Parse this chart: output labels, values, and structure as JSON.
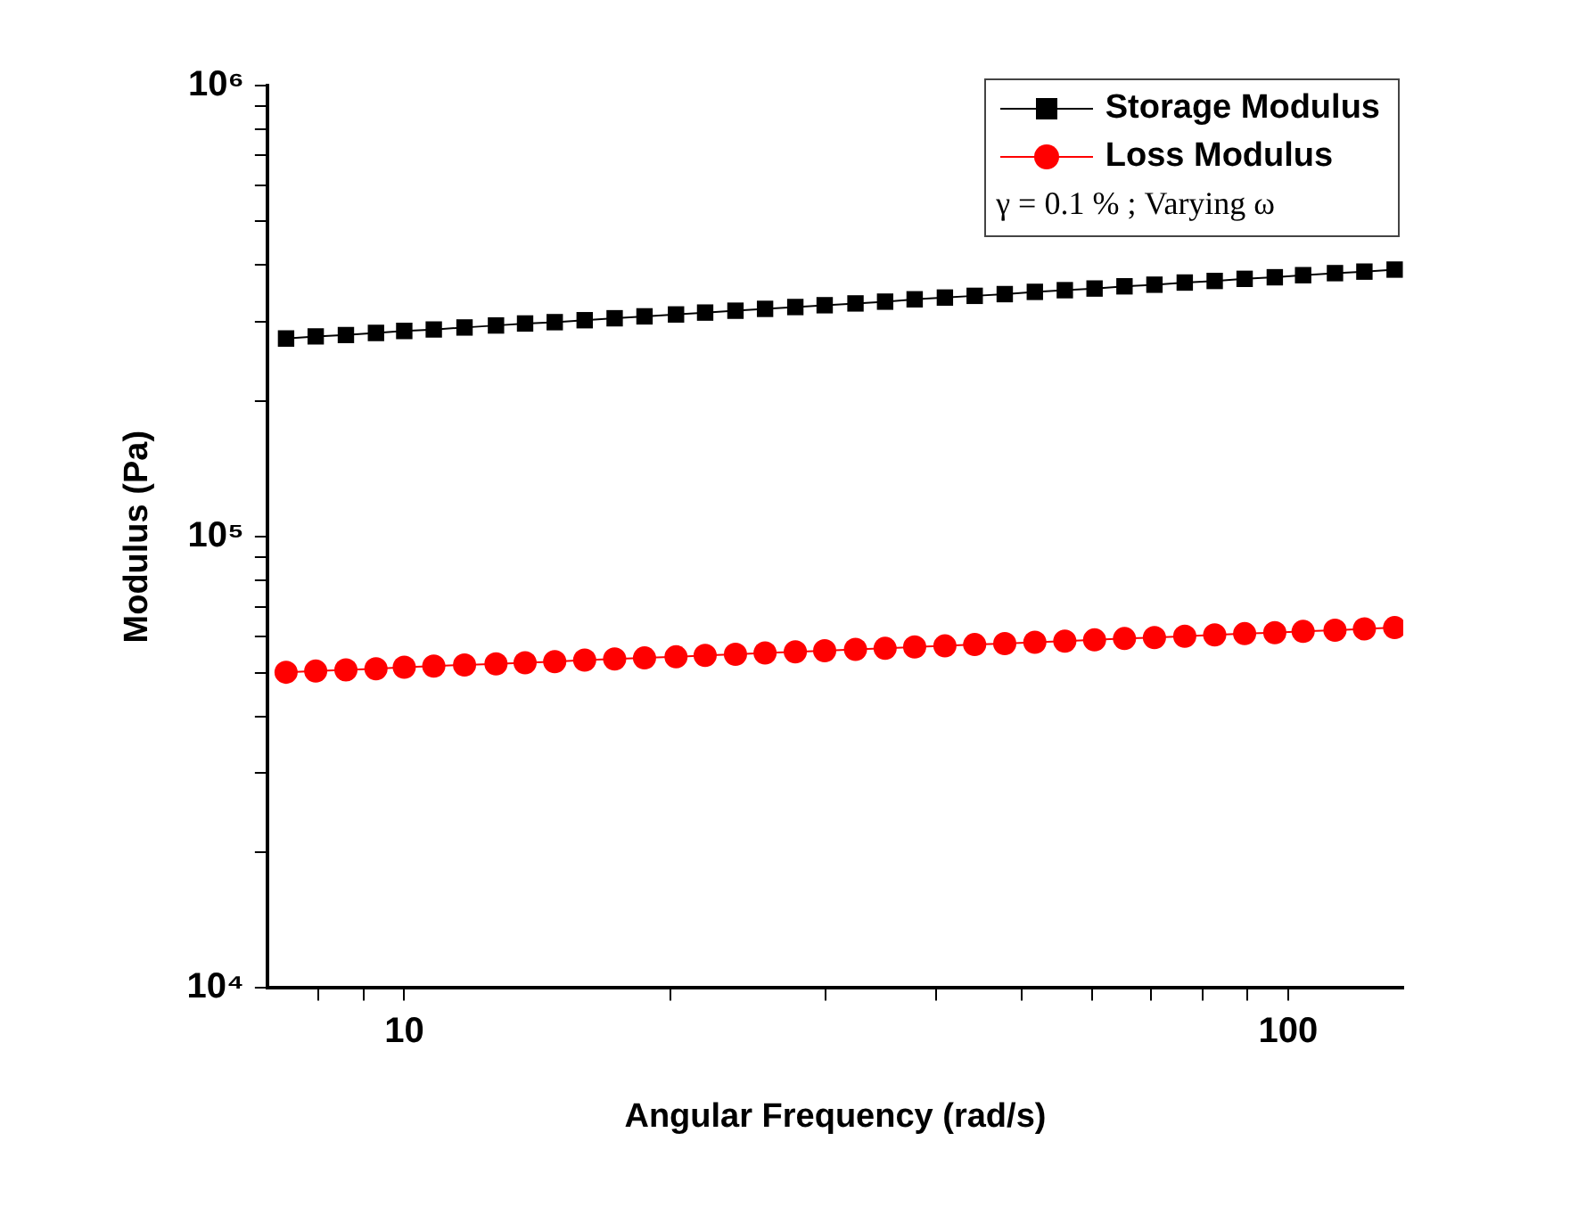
{
  "chart_data": {
    "type": "line",
    "xlabel": "Angular Frequency (rad/s)",
    "ylabel": "Modulus (Pa)",
    "log": "xy",
    "grid": false,
    "legend": "top right",
    "line_style": "solid",
    "annotations": [
      "γ = 0.1 % ; Varying ω"
    ],
    "xlim": [
      7,
      135
    ],
    "xticks": [
      {
        "value": 8,
        "label": null
      },
      {
        "value": 9,
        "label": null
      },
      10,
      {
        "value": 20,
        "label": null
      },
      {
        "value": 30,
        "label": null
      },
      {
        "value": 40,
        "label": null
      },
      {
        "value": 50,
        "label": null
      },
      {
        "value": 60,
        "label": null
      },
      {
        "value": 70,
        "label": null
      },
      {
        "value": 80,
        "label": null
      },
      {
        "value": 90,
        "label": null
      },
      100
    ],
    "ylim": [
      10000,
      1000000
    ],
    "yticks": [
      {
        "value": 10000,
        "label": "10⁴"
      },
      {
        "value": 20000,
        "label": null
      },
      {
        "value": 30000,
        "label": null
      },
      {
        "value": 40000,
        "label": null
      },
      {
        "value": 50000,
        "label": null
      },
      {
        "value": 60000,
        "label": null
      },
      {
        "value": 70000,
        "label": null
      },
      {
        "value": 80000,
        "label": null
      },
      {
        "value": 90000,
        "label": null
      },
      {
        "value": 100000,
        "label": "10⁵"
      },
      {
        "value": 200000,
        "label": null
      },
      {
        "value": 300000,
        "label": null
      },
      {
        "value": 400000,
        "label": null
      },
      {
        "value": 500000,
        "label": null
      },
      {
        "value": 600000,
        "label": null
      },
      {
        "value": 700000,
        "label": null
      },
      {
        "value": 800000,
        "label": null
      },
      {
        "value": 900000,
        "label": null
      },
      {
        "value": 1000000,
        "label": "10⁶"
      }
    ],
    "x": [
      7.35,
      7.94,
      8.59,
      9.29,
      10.0,
      10.8,
      11.7,
      12.7,
      13.7,
      14.8,
      16.0,
      17.3,
      18.7,
      20.3,
      21.9,
      23.7,
      25.6,
      27.7,
      29.9,
      32.4,
      35.0,
      37.8,
      40.9,
      44.2,
      47.8,
      51.7,
      55.9,
      60.4,
      65.3,
      70.6,
      76.4,
      82.6,
      89.3,
      96.6,
      104,
      113,
      122,
      132
    ],
    "series": [
      {
        "name": "Storage Modulus",
        "color": "#000000",
        "marker": "square",
        "values": [
          275000,
          278000,
          280000,
          283000,
          286000,
          288000,
          291000,
          294000,
          297000,
          299000,
          302000,
          305000,
          308000,
          311000,
          314000,
          317000,
          320000,
          323000,
          326000,
          329000,
          332000,
          336000,
          339000,
          342000,
          345000,
          349000,
          352000,
          355000,
          359000,
          362000,
          366000,
          369000,
          373000,
          376000,
          380000,
          384000,
          387000,
          391000
        ]
      },
      {
        "name": "Loss Modulus",
        "color": "#ff0000",
        "marker": "circle",
        "values": [
          50100,
          50400,
          50700,
          51000,
          51400,
          51700,
          52000,
          52300,
          52600,
          52900,
          53300,
          53600,
          53900,
          54200,
          54600,
          54900,
          55300,
          55600,
          55900,
          56300,
          56600,
          57000,
          57300,
          57700,
          58000,
          58400,
          58700,
          59100,
          59500,
          59800,
          60200,
          60600,
          61000,
          61300,
          61700,
          62100,
          62500,
          62900
        ]
      }
    ]
  }
}
